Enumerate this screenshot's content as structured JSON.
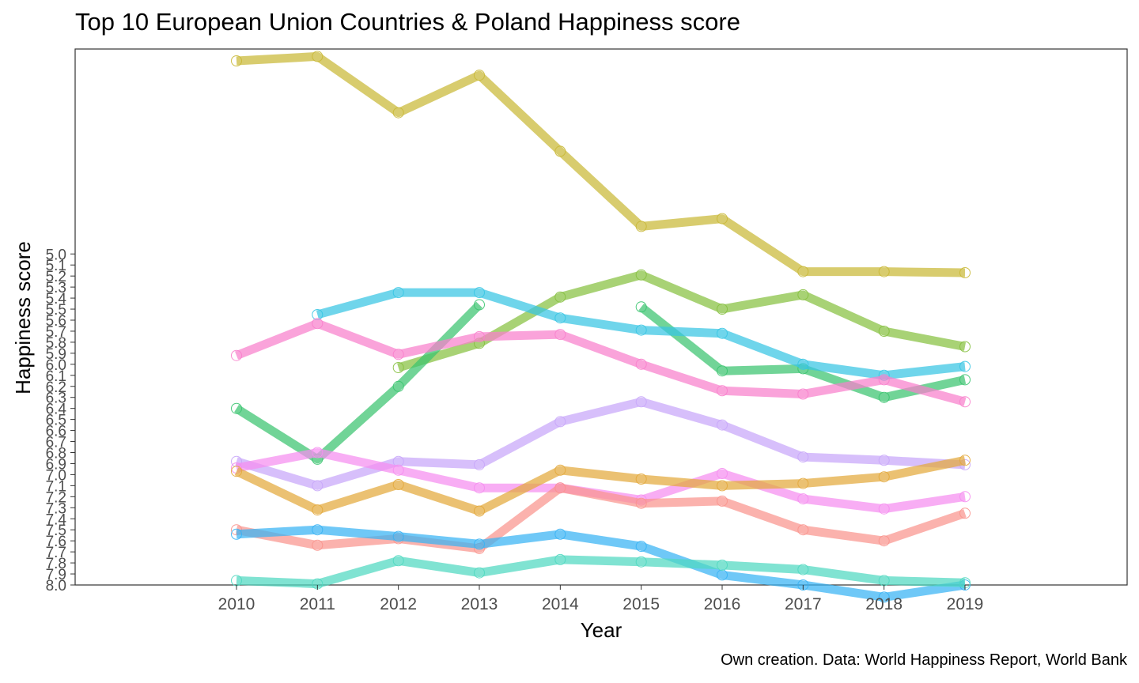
{
  "chart_data": {
    "type": "line",
    "title": "Top 10 European Union Countries & Poland Happiness score",
    "caption": "Own creation. Data: World Happiness Report, World Bank",
    "xlabel": "Year",
    "ylabel": "Happiness score",
    "x": [
      2010,
      2011,
      2012,
      2013,
      2014,
      2015,
      2016,
      2017,
      2018,
      2019
    ],
    "y_ticks": [
      "5.0",
      "5.1",
      "5.2",
      "5.3",
      "5.4",
      "5.5",
      "5.6",
      "5.7",
      "5.8",
      "5.9",
      "6.0",
      "6.1",
      "6.2",
      "6.3",
      "6.4",
      "6.5",
      "6.6",
      "6.7",
      "6.8",
      "6.9",
      "7.0",
      "7.1",
      "7.2",
      "7.3",
      "7.4",
      "7.5",
      "7.6",
      "7.7",
      "7.8",
      "7.9",
      "8.0"
    ],
    "y_range": [
      3.2,
      8.0
    ],
    "y_reversed": true,
    "grid": false,
    "legend": "none",
    "series": [
      {
        "color": "#c9b836",
        "values": [
          3.25,
          3.21,
          3.72,
          3.38,
          4.07,
          4.75,
          4.68,
          5.16,
          5.16,
          5.17
        ]
      },
      {
        "color": "#86c040",
        "values": [
          null,
          null,
          6.03,
          5.81,
          5.39,
          5.19,
          5.5,
          5.37,
          5.7,
          5.84
        ]
      },
      {
        "color": "#3ac46f",
        "values": [
          6.4,
          6.86,
          6.2,
          5.46,
          null,
          5.48,
          6.06,
          6.04,
          6.3,
          6.14
        ]
      },
      {
        "color": "#37c5e3",
        "values": [
          null,
          5.55,
          5.35,
          5.35,
          5.58,
          5.69,
          5.72,
          6.0,
          6.1,
          6.02
        ]
      },
      {
        "color": "#f87fcc",
        "values": [
          5.92,
          5.63,
          5.91,
          5.75,
          5.73,
          6.0,
          6.24,
          6.27,
          6.14,
          6.34
        ]
      },
      {
        "color": "#c8a6f9",
        "values": [
          6.88,
          7.1,
          6.88,
          6.91,
          6.52,
          6.34,
          6.55,
          6.84,
          6.87,
          6.91
        ]
      },
      {
        "color": "#f58df0",
        "values": [
          6.94,
          6.8,
          6.96,
          7.12,
          7.12,
          7.23,
          6.99,
          7.22,
          7.31,
          7.2
        ]
      },
      {
        "color": "#e3a93c",
        "values": [
          6.97,
          7.32,
          7.09,
          7.33,
          6.96,
          7.04,
          7.1,
          7.08,
          7.02,
          6.87
        ]
      },
      {
        "color": "#f9948d",
        "values": [
          7.5,
          7.64,
          7.58,
          7.67,
          7.12,
          7.26,
          7.24,
          7.5,
          7.6,
          7.35
        ]
      },
      {
        "color": "#38b3f4",
        "values": [
          7.54,
          7.5,
          7.56,
          7.63,
          7.54,
          7.65,
          7.91,
          8.0,
          8.11,
          8.0
        ]
      },
      {
        "color": "#4fd8c0",
        "values": [
          7.96,
          7.99,
          7.78,
          7.89,
          7.77,
          7.79,
          7.82,
          7.86,
          7.96,
          7.98
        ]
      }
    ]
  }
}
